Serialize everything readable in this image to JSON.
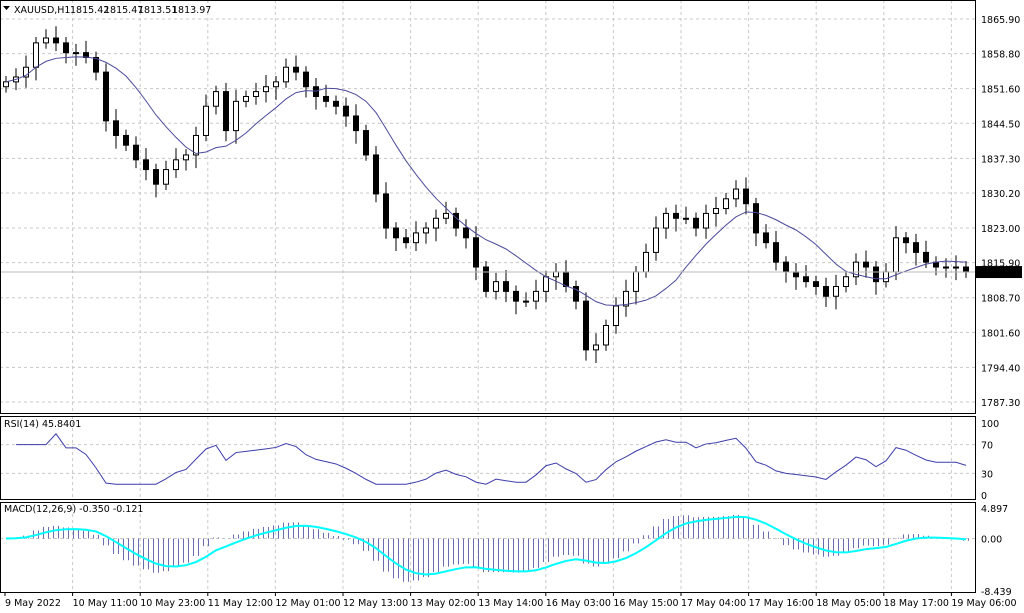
{
  "header": {
    "symbol": "XAUUSD,H1",
    "open": "1815.42",
    "high": "1815.47",
    "low": "1813.51",
    "close": "1813.97"
  },
  "colors": {
    "ma": "#4b4b9a",
    "rsi": "#3d3dab",
    "macd_hist": "#6b6baf",
    "macd_signal": "#00ffff",
    "grid": "#c8c8c8",
    "price_box": "#000000"
  },
  "chart_data": {
    "type": "candlestick",
    "timeframe": "H1",
    "price_ticks": [
      "1865.90",
      "1858.80",
      "1851.60",
      "1844.50",
      "1837.30",
      "1830.20",
      "1823.00",
      "1815.90",
      "1808.70",
      "1801.60",
      "1794.40",
      "1787.30"
    ],
    "current_price": "1813.97",
    "ylim": [
      1787.3,
      1865.9
    ],
    "time_labels": [
      "9 May 2022",
      "10 May 11:00",
      "10 May 23:00",
      "11 May 12:00",
      "12 May 01:00",
      "12 May 13:00",
      "13 May 02:00",
      "13 May 14:00",
      "16 May 03:00",
      "16 May 15:00",
      "17 May 04:00",
      "17 May 16:00",
      "18 May 05:00",
      "18 May 17:00",
      "19 May 06:00"
    ],
    "closes": [
      1853,
      1854,
      1856,
      1861,
      1862,
      1861,
      1859,
      1859,
      1858,
      1855,
      1845,
      1842,
      1840,
      1837,
      1835,
      1832,
      1835,
      1837,
      1838,
      1842,
      1848,
      1851,
      1843,
      1849,
      1850,
      1851,
      1852,
      1853,
      1856,
      1855,
      1852,
      1850,
      1849,
      1848,
      1846,
      1843,
      1838,
      1830,
      1823,
      1821,
      1820,
      1822,
      1823,
      1825,
      1826,
      1823,
      1821,
      1815,
      1810,
      1812,
      1810,
      1808,
      1808,
      1810,
      1813,
      1814,
      1811,
      1808,
      1798,
      1799,
      1803,
      1807,
      1810,
      1814,
      1818,
      1823,
      1826,
      1825,
      1825,
      1823,
      1826,
      1827,
      1829,
      1831,
      1828,
      1822,
      1820,
      1816,
      1814,
      1813,
      1812,
      1811,
      1809,
      1811,
      1813,
      1816,
      1815,
      1812,
      1814,
      1821,
      1820,
      1818,
      1816,
      1815,
      1815,
      1815,
      1813.97
    ],
    "indicators": {
      "ma_line": true,
      "rsi": {
        "label": "RSI(14) 45.8401",
        "ticks": [
          "100",
          "70",
          "30",
          "0"
        ],
        "ylim": [
          0,
          100
        ]
      },
      "macd": {
        "label": "MACD(12,26,9) -0.350 -0.121",
        "ticks": [
          "4.897",
          "0.00",
          "-8.439"
        ],
        "ylim": [
          -8.439,
          4.897
        ]
      }
    }
  }
}
